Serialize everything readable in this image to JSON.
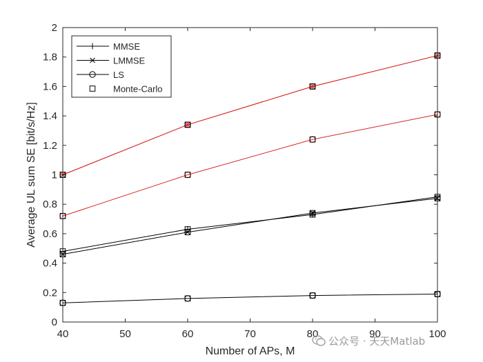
{
  "chart_data": {
    "type": "line",
    "title": "",
    "xlabel": "Number of APs, M",
    "ylabel": "Average UL sum SE [bit/s/Hz]",
    "xlim": [
      40,
      100
    ],
    "ylim": [
      0,
      2
    ],
    "xticks": [
      40,
      50,
      60,
      70,
      80,
      90,
      100
    ],
    "yticks": [
      0,
      0.2,
      0.4,
      0.6,
      0.8,
      1,
      1.2,
      1.4,
      1.6,
      1.8,
      2
    ],
    "grid": false,
    "legend_position": "top-left",
    "legend": [
      {
        "label": "MMSE",
        "marker": "plus"
      },
      {
        "label": "LMMSE",
        "marker": "x"
      },
      {
        "label": "LS",
        "marker": "circle"
      },
      {
        "label": "Monte-Carlo",
        "marker": "square"
      }
    ],
    "x": [
      40,
      60,
      80,
      100
    ],
    "series": [
      {
        "group": "red",
        "color": "#d62728",
        "estimator": "MMSE",
        "values": [
          1.0,
          1.34,
          1.6,
          1.81
        ]
      },
      {
        "group": "red",
        "color": "#d62728",
        "estimator": "LMMSE",
        "values": [
          1.0,
          1.34,
          1.6,
          1.81
        ]
      },
      {
        "group": "red",
        "color": "#d62728",
        "estimator": "LS",
        "values": [
          0.72,
          1.0,
          1.24,
          1.41
        ]
      },
      {
        "group": "black",
        "color": "#000000",
        "estimator": "MMSE",
        "values": [
          0.48,
          0.63,
          0.73,
          0.85
        ]
      },
      {
        "group": "black",
        "color": "#000000",
        "estimator": "LMMSE",
        "values": [
          0.46,
          0.61,
          0.74,
          0.84
        ]
      },
      {
        "group": "black",
        "color": "#000000",
        "estimator": "LS",
        "values": [
          0.13,
          0.16,
          0.18,
          0.19
        ]
      }
    ]
  },
  "watermark": {
    "text": "公众号 · 天天Matlab",
    "icon": "wechat-icon"
  }
}
